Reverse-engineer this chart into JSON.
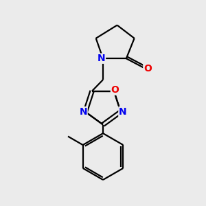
{
  "background_color": "#ebebeb",
  "bond_color": "#000000",
  "N_color": "#0000ee",
  "O_color": "#ee0000",
  "line_width": 1.6,
  "font_size": 10,
  "fig_size": [
    3.0,
    3.0
  ],
  "dpi": 100,
  "xlim": [
    0,
    10
  ],
  "ylim": [
    0,
    10
  ]
}
